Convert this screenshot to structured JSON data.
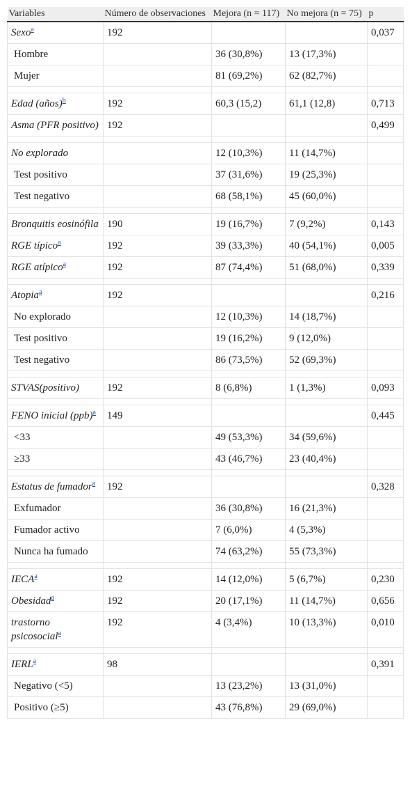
{
  "table": {
    "header": [
      "Variables",
      "Número de observaciones",
      "Mejora (n = 117)",
      "No mejora (n = 75)",
      "p"
    ],
    "rows": [
      {
        "cells": [
          "Sexo",
          "192",
          null,
          null,
          "0,037"
        ],
        "note": "a",
        "italic": true
      },
      {
        "cells": [
          "Hombre",
          null,
          "36 (30,8%)",
          "13 (17,3%)",
          null
        ],
        "italic": false
      },
      {
        "cells": [
          "Mujer",
          null,
          "81 (69,2%)",
          "62 (82,7%)",
          null
        ],
        "italic": false
      },
      {
        "cells": [
          "Edad (años)",
          "192",
          "60,3 (15,2)",
          "61,1 (12,8)",
          "0,713"
        ],
        "note": "b",
        "italic": true,
        "gap_before": true
      },
      {
        "cells": [
          "Asma (PFR positivo)",
          "192",
          null,
          null,
          "0,499"
        ],
        "italic": true
      },
      {
        "cells": [
          "No explorado",
          null,
          "12 (10,3%)",
          "11 (14,7%)",
          null
        ],
        "italic": true,
        "gap_before": true
      },
      {
        "cells": [
          "Test positivo",
          null,
          "37 (31,6%)",
          "19 (25,3%)",
          null
        ],
        "italic": false
      },
      {
        "cells": [
          "Test negativo",
          null,
          "68 (58,1%)",
          "45 (60,0%)",
          null
        ],
        "italic": false
      },
      {
        "cells": [
          "Bronquitis eosinófila",
          "190",
          "19 (16,7%)",
          "7 (9,2%)",
          "0,143"
        ],
        "italic": true,
        "gap_before": true
      },
      {
        "cells": [
          "RGE típico",
          "192",
          "39 (33,3%)",
          "40 (54,1%)",
          "0,005"
        ],
        "note": "a",
        "italic": true
      },
      {
        "cells": [
          "RGE atípico",
          "192",
          "87 (74,4%)",
          "51 (68,0%)",
          "0,339"
        ],
        "note": "a",
        "italic": true
      },
      {
        "cells": [
          "Atopia",
          "192",
          null,
          null,
          "0,216"
        ],
        "note": "a",
        "italic": true,
        "gap_before": true
      },
      {
        "cells": [
          "No explorado",
          null,
          "12 (10,3%)",
          "14 (18,7%)",
          null
        ],
        "italic": false
      },
      {
        "cells": [
          "Test positivo",
          null,
          "19 (16,2%)",
          "9 (12,0%)",
          null
        ],
        "italic": false
      },
      {
        "cells": [
          "Test negativo",
          null,
          "86 (73,5%)",
          "52 (69,3%)",
          null
        ],
        "italic": false
      },
      {
        "cells": [
          "STVAS(positivo)",
          "192",
          "8 (6,8%)",
          "1 (1,3%)",
          "0,093"
        ],
        "italic": true,
        "gap_before": true
      },
      {
        "cells": [
          "FENO inicial (ppb)",
          "149",
          null,
          null,
          "0,445"
        ],
        "note": "a",
        "italic": true,
        "gap_before": true
      },
      {
        "cells": [
          "<33",
          null,
          "49 (53,3%)",
          "34 (59,6%)",
          null
        ],
        "italic": false
      },
      {
        "cells": [
          "≥33",
          null,
          "43 (46,7%)",
          "23 (40,4%)",
          null
        ],
        "italic": false
      },
      {
        "cells": [
          "Estatus de fumador",
          "192",
          null,
          null,
          "0,328"
        ],
        "note": "a",
        "italic": true,
        "gap_before": true
      },
      {
        "cells": [
          "Exfumador",
          null,
          "36 (30,8%)",
          "16 (21,3%)",
          null
        ],
        "italic": false
      },
      {
        "cells": [
          "Fumador activo",
          null,
          "7 (6,0%)",
          "4 (5,3%)",
          null
        ],
        "italic": false
      },
      {
        "cells": [
          "Nunca ha fumado",
          null,
          "74 (63,2%)",
          "55 (73,3%)",
          null
        ],
        "italic": false
      },
      {
        "cells": [
          "IECA",
          "192",
          "14 (12,0%)",
          "5 (6,7%)",
          "0,230"
        ],
        "note": "a",
        "italic": true,
        "gap_before": true
      },
      {
        "cells": [
          "Obesidad",
          "192",
          "20 (17,1%)",
          "11 (14,7%)",
          "0,656"
        ],
        "note": "a",
        "italic": true
      },
      {
        "cells": [
          "trastorno psicosocial",
          "192",
          "4 (3,4%)",
          "10 (13,3%)",
          "0,010"
        ],
        "note": "a",
        "italic": true
      },
      {
        "cells": [
          "IERL",
          "98",
          null,
          null,
          "0,391"
        ],
        "note": "a",
        "italic": true,
        "gap_before": true
      },
      {
        "cells": [
          "Negativo (<5)",
          null,
          "13 (23,2%)",
          "13 (31,0%)",
          null
        ],
        "italic": false
      },
      {
        "cells": [
          "Positivo (≥5)",
          null,
          "43 (76,8%)",
          "29 (69,0%)",
          null
        ],
        "italic": false
      }
    ]
  }
}
